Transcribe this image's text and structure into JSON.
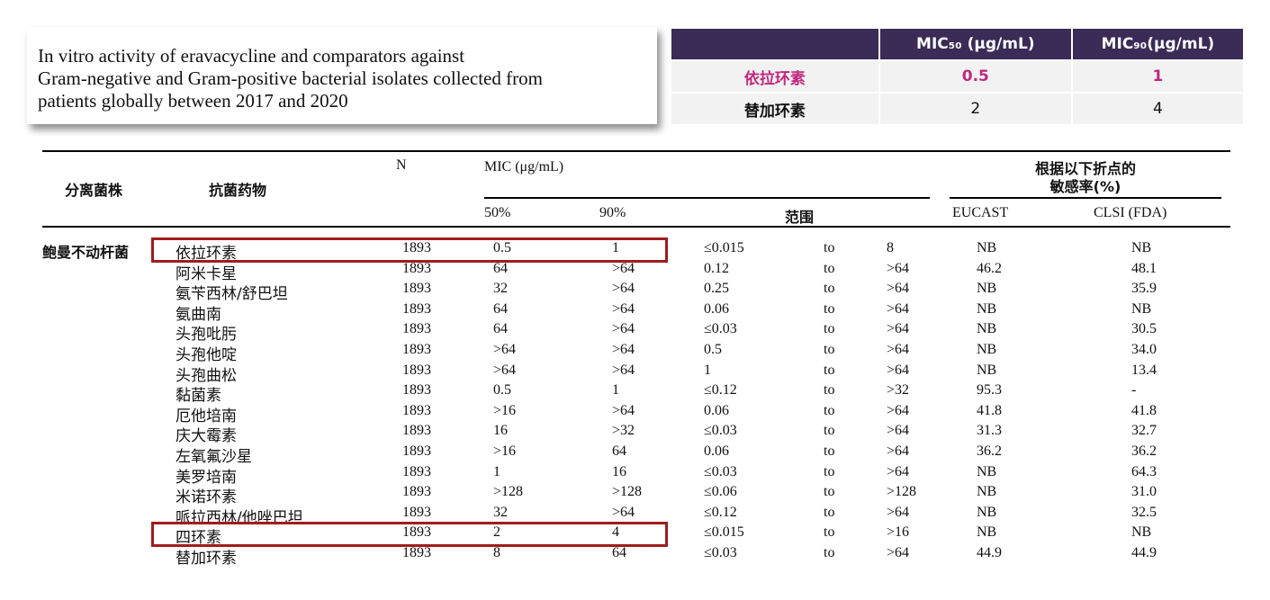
{
  "title": {
    "lines": [
      "In vitro activity of eravacycline and comparators against",
      "Gram-negative and Gram-positive bacterial isolates collected from",
      "patients globally between 2017 and 2020"
    ]
  },
  "summary": {
    "header": [
      "MIC₅₀ (μg/mL)",
      "MIC₉₀(μg/mL)"
    ],
    "rows": [
      [
        "依拉环素",
        "0.5",
        "1"
      ],
      [
        "替加环素",
        "2",
        "4"
      ]
    ]
  },
  "table": {
    "header": {
      "organism": "分离菌株",
      "drug": "抗菌药物",
      "n": "N",
      "mic": "MIC (μg/mL)",
      "mic50": "50%",
      "mic90": "90%",
      "range": "范围",
      "susceptibility": [
        "根据以下折点的",
        "敏感率(%)"
      ],
      "eucast": "EUCAST",
      "clsi": "CLSI (FDA)"
    },
    "organism": "鲍曼不动杆菌",
    "rows": [
      [
        "依拉环素",
        "1893",
        "0.5",
        "1",
        "≤0.015",
        "to",
        "8",
        "NB",
        "NB"
      ],
      [
        "阿米卡星",
        "1893",
        "64",
        ">64",
        "0.12",
        "to",
        ">64",
        "46.2",
        "48.1"
      ],
      [
        "氨苄西林/舒巴坦",
        "1893",
        "32",
        ">64",
        "0.25",
        "to",
        ">64",
        "NB",
        "35.9"
      ],
      [
        "氨曲南",
        "1893",
        "64",
        ">64",
        "0.06",
        "to",
        ">64",
        "NB",
        "NB"
      ],
      [
        "头孢吡肟",
        "1893",
        "64",
        ">64",
        "≤0.03",
        "to",
        ">64",
        "NB",
        "30.5"
      ],
      [
        "头孢他啶",
        "1893",
        ">64",
        ">64",
        "0.5",
        "to",
        ">64",
        "NB",
        "34.0"
      ],
      [
        "头孢曲松",
        "1893",
        ">64",
        ">64",
        "1",
        "to",
        ">64",
        "NB",
        "13.4"
      ],
      [
        "黏菌素",
        "1893",
        "0.5",
        "1",
        "≤0.12",
        "to",
        ">32",
        "95.3",
        "-"
      ],
      [
        "厄他培南",
        "1893",
        ">16",
        ">64",
        "0.06",
        "to",
        ">64",
        "41.8",
        "41.8"
      ],
      [
        "庆大霉素",
        "1893",
        "16",
        ">32",
        "≤0.03",
        "to",
        ">64",
        "31.3",
        "32.7"
      ],
      [
        "左氧氟沙星",
        "1893",
        ">16",
        "64",
        "0.06",
        "to",
        ">64",
        "36.2",
        "36.2"
      ],
      [
        "美罗培南",
        "1893",
        "1",
        "16",
        "≤0.03",
        "to",
        ">64",
        "NB",
        "64.3"
      ],
      [
        "米诺环素",
        "1893",
        ">128",
        ">128",
        "≤0.06",
        "to",
        ">128",
        "NB",
        "31.0"
      ],
      [
        "哌拉西林/他唑巴坦",
        "1893",
        "32",
        ">64",
        "≤0.12",
        "to",
        ">64",
        "NB",
        "32.5"
      ],
      [
        "四环素",
        "1893",
        "2",
        "4",
        "≤0.015",
        "to",
        ">16",
        "NB",
        "NB"
      ],
      [
        "替加环素",
        "1893",
        "8",
        "64",
        "≤0.03",
        "to",
        ">64",
        "44.9",
        "44.9"
      ]
    ]
  }
}
